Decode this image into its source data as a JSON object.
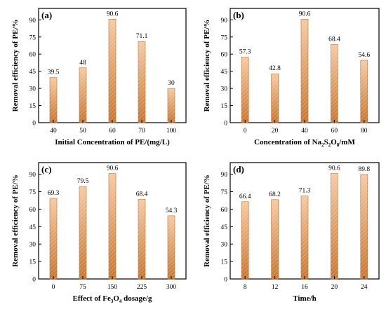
{
  "colors": {
    "bar_light": "#f6c9a1",
    "bar_dark": "#c9762f",
    "bar_stroke": "#b86a2a",
    "axis": "#000000"
  },
  "chart_data": [
    {
      "type": "bar",
      "panel": "(a)",
      "categories": [
        "40",
        "50",
        "60",
        "70",
        "100"
      ],
      "values": [
        39.5,
        48,
        90.6,
        71.1,
        30
      ],
      "value_labels": [
        "39.5",
        "48",
        "90.6",
        "71.1",
        "30"
      ],
      "xlabel": "Initial Concentration of PE/(mg/L)",
      "xlabel_parts": [
        {
          "t": "Initial Concentration of PE/(mg/L)"
        }
      ],
      "ylabel": "Removal efficiency of PE/%",
      "ylim": [
        0,
        100
      ],
      "yticks": [
        0,
        15,
        30,
        45,
        60,
        75,
        90
      ]
    },
    {
      "type": "bar",
      "panel": "(b)",
      "categories": [
        "0",
        "20",
        "40",
        "60",
        "80"
      ],
      "values": [
        57.3,
        42.8,
        90.6,
        68.4,
        54.6
      ],
      "value_labels": [
        "57.3",
        "42.8",
        "90.6",
        "68.4",
        "54.6"
      ],
      "xlabel": "Concentration of Na2S2O8/mM",
      "xlabel_parts": [
        {
          "t": "Concentration of Na"
        },
        {
          "t": "2",
          "sub": true
        },
        {
          "t": "S"
        },
        {
          "t": "2",
          "sub": true
        },
        {
          "t": "O"
        },
        {
          "t": "8",
          "sub": true
        },
        {
          "t": "/mM"
        }
      ],
      "ylabel": "Removal efficiency of PE/%",
      "ylim": [
        0,
        100
      ],
      "yticks": [
        0,
        15,
        30,
        45,
        60,
        75,
        90
      ]
    },
    {
      "type": "bar",
      "panel": "(c)",
      "categories": [
        "0",
        "75",
        "150",
        "225",
        "300"
      ],
      "values": [
        69.3,
        79.5,
        90.6,
        68.4,
        54.3
      ],
      "value_labels": [
        "69.3",
        "79.5",
        "90.6",
        "68.4",
        "54.3"
      ],
      "xlabel": "Effect of Fe3O4 dosage/g",
      "xlabel_parts": [
        {
          "t": "Effect of Fe"
        },
        {
          "t": "3",
          "sub": true
        },
        {
          "t": "O"
        },
        {
          "t": "4",
          "sub": true
        },
        {
          "t": " dosage/g"
        }
      ],
      "ylabel": "Removal efficiency of PE/%",
      "ylim": [
        0,
        100
      ],
      "yticks": [
        0,
        15,
        30,
        45,
        60,
        75,
        90
      ]
    },
    {
      "type": "bar",
      "panel": "(d)",
      "categories": [
        "8",
        "12",
        "16",
        "20",
        "24"
      ],
      "values": [
        66.4,
        68.2,
        71.3,
        90.6,
        89.8
      ],
      "value_labels": [
        "66.4",
        "68.2",
        "71.3",
        "90.6",
        "89.8"
      ],
      "xlabel": "Time/h",
      "xlabel_parts": [
        {
          "t": "Time/h"
        }
      ],
      "ylabel": "Removal efficiency of PE/%",
      "ylim": [
        0,
        100
      ],
      "yticks": [
        0,
        15,
        30,
        45,
        60,
        75,
        90
      ]
    }
  ]
}
